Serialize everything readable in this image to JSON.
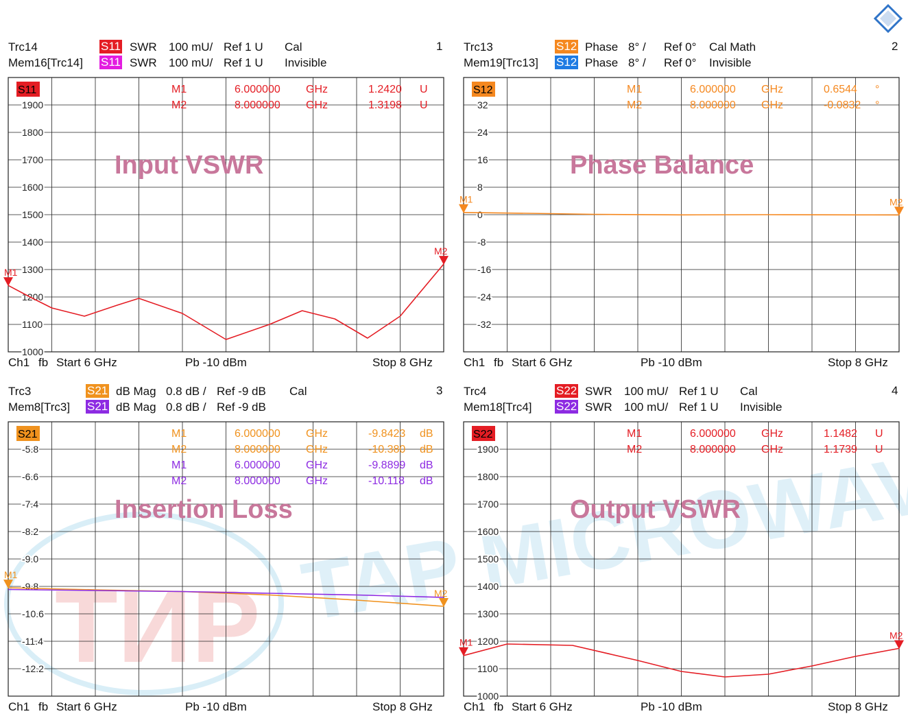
{
  "colors": {
    "s11": "#e41d24",
    "s11_mem": "#e31ce0",
    "s12": "#f5881f",
    "s12_mem": "#1e7be3",
    "s21": "#f0921e",
    "s21_mem": "#8d2be2",
    "s22": "#e41d24",
    "s22_mem": "#8d2be2",
    "title": "#c8779b",
    "grid": "#222222"
  },
  "panels": [
    {
      "id": "p1",
      "number": "1",
      "trace": {
        "name": "Trc14",
        "param": "S11",
        "format": "SWR",
        "scale": "100 mU/",
        "ref": "Ref 1 U",
        "cal": "Cal"
      },
      "memory": {
        "name": "Mem16[Trc14]",
        "param": "S11",
        "format": "SWR",
        "scale": "100 mU/",
        "ref": "Ref 1 U",
        "cal": "Invisible"
      },
      "badge": "S11",
      "overlay_title": "Input VSWR",
      "markers": [
        {
          "name": "M1",
          "freq": "6.000000",
          "unit": "GHz",
          "value": "1.2420",
          "vunit": "U",
          "color": "s11"
        },
        {
          "name": "M2",
          "freq": "8.000000",
          "unit": "GHz",
          "value": "1.3198",
          "vunit": "U",
          "color": "s11"
        }
      ],
      "footer": {
        "channel": "Ch1",
        "fb": "fb",
        "start": "Start  6 GHz",
        "power": "Pb  -10 dBm",
        "stop": "Stop  8 GHz"
      }
    },
    {
      "id": "p2",
      "number": "2",
      "trace": {
        "name": "Trc13",
        "param": "S12",
        "format": "Phase",
        "scale": "8° /",
        "ref": "Ref 0°",
        "cal": "Cal Math"
      },
      "memory": {
        "name": "Mem19[Trc13]",
        "param": "S12",
        "format": "Phase",
        "scale": "8° /",
        "ref": "Ref 0°",
        "cal": "Invisible"
      },
      "badge": "S12",
      "overlay_title": "Phase Balance",
      "markers": [
        {
          "name": "M1",
          "freq": "6.000000",
          "unit": "GHz",
          "value": "0.6544",
          "vunit": "°",
          "color": "s12"
        },
        {
          "name": "M2",
          "freq": "8.000000",
          "unit": "GHz",
          "value": "-0.0832",
          "vunit": "°",
          "color": "s12"
        }
      ],
      "footer": {
        "channel": "Ch1",
        "fb": "fb",
        "start": "Start  6 GHz",
        "power": "Pb  -10 dBm",
        "stop": "Stop  8 GHz"
      }
    },
    {
      "id": "p3",
      "number": "3",
      "trace": {
        "name": "Trc3",
        "param": "S21",
        "format": "dB Mag",
        "scale": "0.8 dB /",
        "ref": "Ref -9 dB",
        "cal": "Cal"
      },
      "memory": {
        "name": "Mem8[Trc3]",
        "param": "S21",
        "format": "dB Mag",
        "scale": "0.8 dB /",
        "ref": "Ref -9 dB",
        "cal": ""
      },
      "badge": "S21",
      "overlay_title": "Insertion Loss",
      "markers": [
        {
          "name": "M1",
          "freq": "6.000000",
          "unit": "GHz",
          "value": "-9.8423",
          "vunit": "dB",
          "color": "s21"
        },
        {
          "name": "M2",
          "freq": "8.000000",
          "unit": "GHz",
          "value": "-10.380",
          "vunit": "dB",
          "color": "s21"
        },
        {
          "name": "M1",
          "freq": "6.000000",
          "unit": "GHz",
          "value": "-9.8899",
          "vunit": "dB",
          "color": "s21_mem"
        },
        {
          "name": "M2",
          "freq": "8.000000",
          "unit": "GHz",
          "value": "-10.118",
          "vunit": "dB",
          "color": "s21_mem"
        }
      ],
      "footer": {
        "channel": "Ch1",
        "fb": "fb",
        "start": "Start  6 GHz",
        "power": "Pb  -10 dBm",
        "stop": "Stop  8 GHz"
      }
    },
    {
      "id": "p4",
      "number": "4",
      "trace": {
        "name": "Trc4",
        "param": "S22",
        "format": "SWR",
        "scale": "100 mU/",
        "ref": "Ref 1 U",
        "cal": "Cal"
      },
      "memory": {
        "name": "Mem18[Trc4]",
        "param": "S22",
        "format": "SWR",
        "scale": "100 mU/",
        "ref": "Ref 1 U",
        "cal": "Invisible"
      },
      "badge": "S22",
      "overlay_title": "Output VSWR",
      "markers": [
        {
          "name": "M1",
          "freq": "6.000000",
          "unit": "GHz",
          "value": "1.1482",
          "vunit": "U",
          "color": "s22"
        },
        {
          "name": "M2",
          "freq": "8.000000",
          "unit": "GHz",
          "value": "1.1739",
          "vunit": "U",
          "color": "s22"
        }
      ],
      "footer": {
        "channel": "Ch1",
        "fb": "fb",
        "start": "Start  6 GHz",
        "power": "Pb  -10 dBm",
        "stop": "Stop  8 GHz"
      }
    }
  ],
  "chart_data": [
    {
      "type": "line",
      "title": "Input VSWR",
      "xlabel": "",
      "ylabel": "",
      "x_range_ghz": [
        6,
        8
      ],
      "ylim": [
        1.0,
        2.0
      ],
      "y_ticks": [
        {
          "v": 1.9,
          "label": "1900"
        },
        {
          "v": 1.8,
          "label": "1800"
        },
        {
          "v": 1.7,
          "label": "1700"
        },
        {
          "v": 1.6,
          "label": "1600"
        },
        {
          "v": 1.5,
          "label": "1500"
        },
        {
          "v": 1.4,
          "label": "1400"
        },
        {
          "v": 1.3,
          "label": "1300"
        },
        {
          "v": 1.2,
          "label": "1200"
        },
        {
          "v": 1.1,
          "label": "1100"
        },
        {
          "v": 1.0,
          "label": "1000"
        }
      ],
      "grid": true,
      "series": [
        {
          "name": "S11",
          "color": "s11",
          "x": [
            6.0,
            6.1,
            6.2,
            6.35,
            6.5,
            6.6,
            6.8,
            7.0,
            7.2,
            7.35,
            7.5,
            7.65,
            7.8,
            8.0
          ],
          "y": [
            1.242,
            1.2,
            1.16,
            1.13,
            1.17,
            1.195,
            1.14,
            1.045,
            1.1,
            1.15,
            1.12,
            1.05,
            1.13,
            1.32
          ]
        }
      ],
      "marker_points": [
        {
          "name": "M1",
          "x": 6.0,
          "y": 1.242
        },
        {
          "name": "M2",
          "x": 8.0,
          "y": 1.3198
        }
      ]
    },
    {
      "type": "line",
      "title": "Phase Balance",
      "xlabel": "",
      "ylabel": "",
      "x_range_ghz": [
        6,
        8
      ],
      "ylim": [
        -40,
        40
      ],
      "y_ticks": [
        {
          "v": 32,
          "label": "32"
        },
        {
          "v": 24,
          "label": "24"
        },
        {
          "v": 16,
          "label": "16"
        },
        {
          "v": 8,
          "label": "8"
        },
        {
          "v": 0,
          "label": "0"
        },
        {
          "v": -8,
          "label": "-8"
        },
        {
          "v": -16,
          "label": "-16"
        },
        {
          "v": -24,
          "label": "-24"
        },
        {
          "v": -32,
          "label": "-32"
        }
      ],
      "grid": true,
      "series": [
        {
          "name": "S12",
          "color": "s12",
          "x": [
            6.0,
            6.3,
            6.6,
            7.0,
            7.4,
            7.8,
            8.0
          ],
          "y": [
            0.65,
            0.4,
            0.1,
            -0.05,
            0.0,
            -0.05,
            -0.08
          ]
        }
      ],
      "marker_points": [
        {
          "name": "M1",
          "x": 6.0,
          "y": 0.6544
        },
        {
          "name": "M2",
          "x": 8.0,
          "y": -0.0832
        }
      ]
    },
    {
      "type": "line",
      "title": "Insertion Loss",
      "xlabel": "",
      "ylabel": "",
      "x_range_ghz": [
        6,
        8
      ],
      "ylim": [
        -13.0,
        -5.0
      ],
      "y_ticks": [
        {
          "v": -5.8,
          "label": "-5.8"
        },
        {
          "v": -6.6,
          "label": "-6.6"
        },
        {
          "v": -7.4,
          "label": "-7.4"
        },
        {
          "v": -8.2,
          "label": "-8.2"
        },
        {
          "v": -9.0,
          "label": "-9.0"
        },
        {
          "v": -9.8,
          "label": "-9.8"
        },
        {
          "v": -10.6,
          "label": "-10.6"
        },
        {
          "v": -11.4,
          "label": "-11.4"
        },
        {
          "v": -12.2,
          "label": "-12.2"
        }
      ],
      "grid": true,
      "series": [
        {
          "name": "S21",
          "color": "s21",
          "x": [
            6.0,
            6.4,
            6.8,
            7.2,
            7.6,
            8.0
          ],
          "y": [
            -9.84,
            -9.9,
            -9.95,
            -10.05,
            -10.2,
            -10.38
          ]
        },
        {
          "name": "S21",
          "color": "s21_mem",
          "x": [
            6.0,
            6.4,
            6.8,
            7.2,
            7.6,
            8.0
          ],
          "y": [
            -9.89,
            -9.92,
            -9.95,
            -10.0,
            -10.05,
            -10.12
          ]
        }
      ],
      "marker_points": [
        {
          "name": "M1",
          "x": 6.0,
          "y": -9.8423
        },
        {
          "name": "M2",
          "x": 8.0,
          "y": -10.38
        }
      ]
    },
    {
      "type": "line",
      "title": "Output VSWR",
      "xlabel": "",
      "ylabel": "",
      "x_range_ghz": [
        6,
        8
      ],
      "ylim": [
        1.0,
        2.0
      ],
      "y_ticks": [
        {
          "v": 1.9,
          "label": "1900"
        },
        {
          "v": 1.8,
          "label": "1800"
        },
        {
          "v": 1.7,
          "label": "1700"
        },
        {
          "v": 1.6,
          "label": "1600"
        },
        {
          "v": 1.5,
          "label": "1500"
        },
        {
          "v": 1.4,
          "label": "1400"
        },
        {
          "v": 1.3,
          "label": "1300"
        },
        {
          "v": 1.2,
          "label": "1200"
        },
        {
          "v": 1.1,
          "label": "1100"
        },
        {
          "v": 1.0,
          "label": "1000"
        }
      ],
      "grid": true,
      "series": [
        {
          "name": "S22",
          "color": "s22",
          "x": [
            6.0,
            6.2,
            6.5,
            6.8,
            7.0,
            7.2,
            7.4,
            7.6,
            7.8,
            8.0
          ],
          "y": [
            1.148,
            1.19,
            1.185,
            1.13,
            1.09,
            1.07,
            1.08,
            1.11,
            1.145,
            1.174
          ]
        }
      ],
      "marker_points": [
        {
          "name": "M1",
          "x": 6.0,
          "y": 1.1482
        },
        {
          "name": "M2",
          "x": 8.0,
          "y": 1.1739
        }
      ]
    }
  ]
}
